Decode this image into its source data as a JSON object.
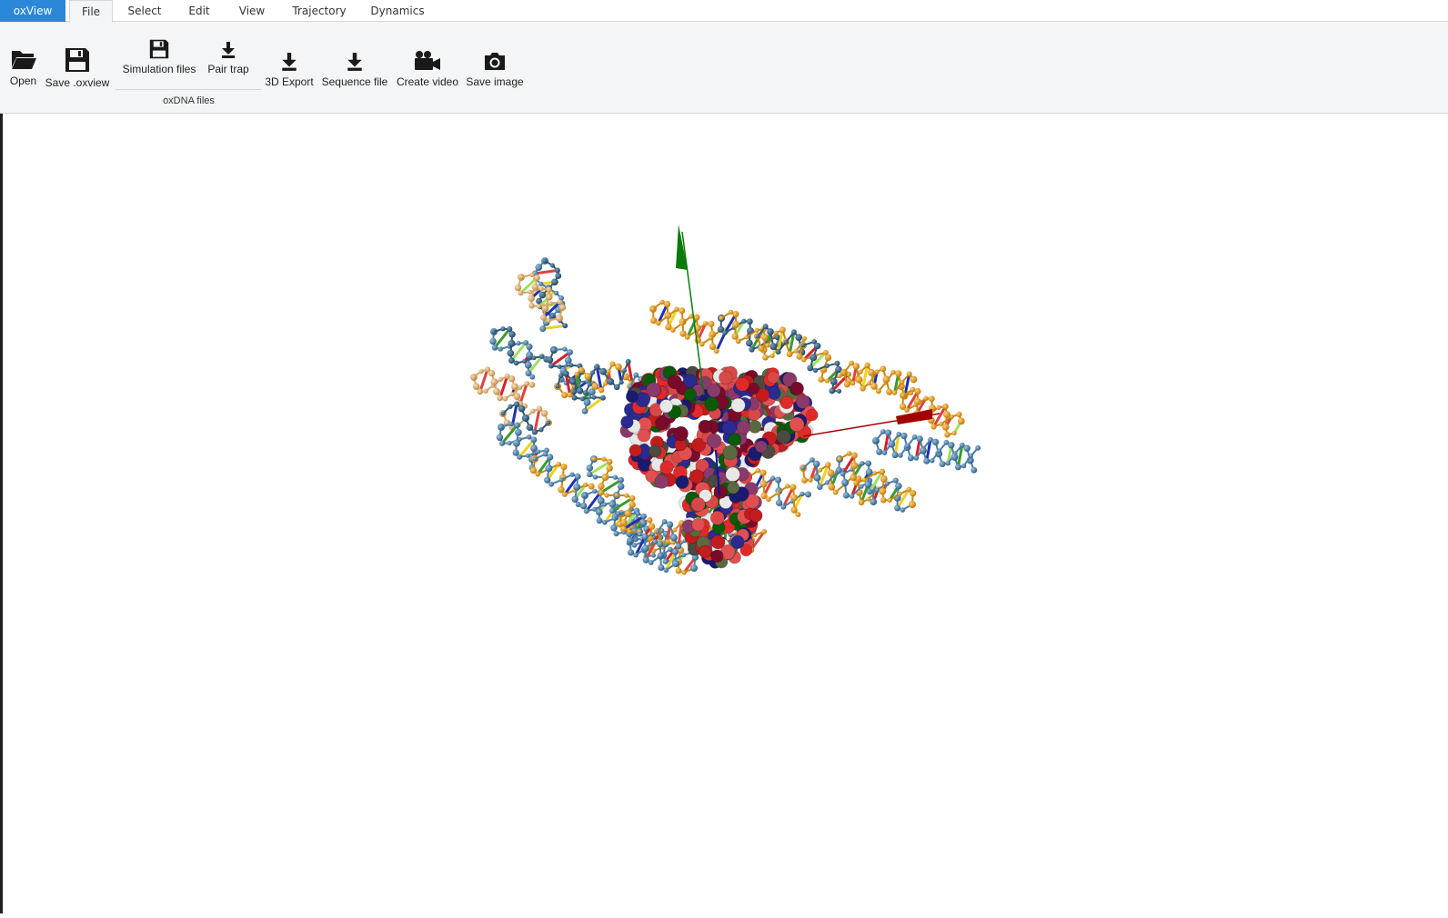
{
  "menubar": {
    "app": "oxView",
    "tabs": [
      {
        "label": "File",
        "active": true
      },
      {
        "label": "Select"
      },
      {
        "label": "Edit"
      },
      {
        "label": "View"
      },
      {
        "label": "Trajectory"
      },
      {
        "label": "Dynamics"
      }
    ]
  },
  "ribbon": {
    "open": "Open",
    "save_oxview": "Save .oxview",
    "simulation_files": "Simulation files",
    "pair_trap": "Pair trap",
    "group_oxdna": "oxDNA files",
    "export_3d": "3D Export",
    "sequence_file": "Sequence file",
    "create_video": "Create video",
    "save_image": "Save image"
  },
  "colors": {
    "app_tab": "#2b88d8",
    "strand_orange": "#e8a020",
    "strand_blue": "#4a7fa8",
    "strand_tan": "#e8b878",
    "axis_green": "#0a7a0a",
    "axis_red": "#a00000",
    "axis_blue": "#1010a0"
  }
}
